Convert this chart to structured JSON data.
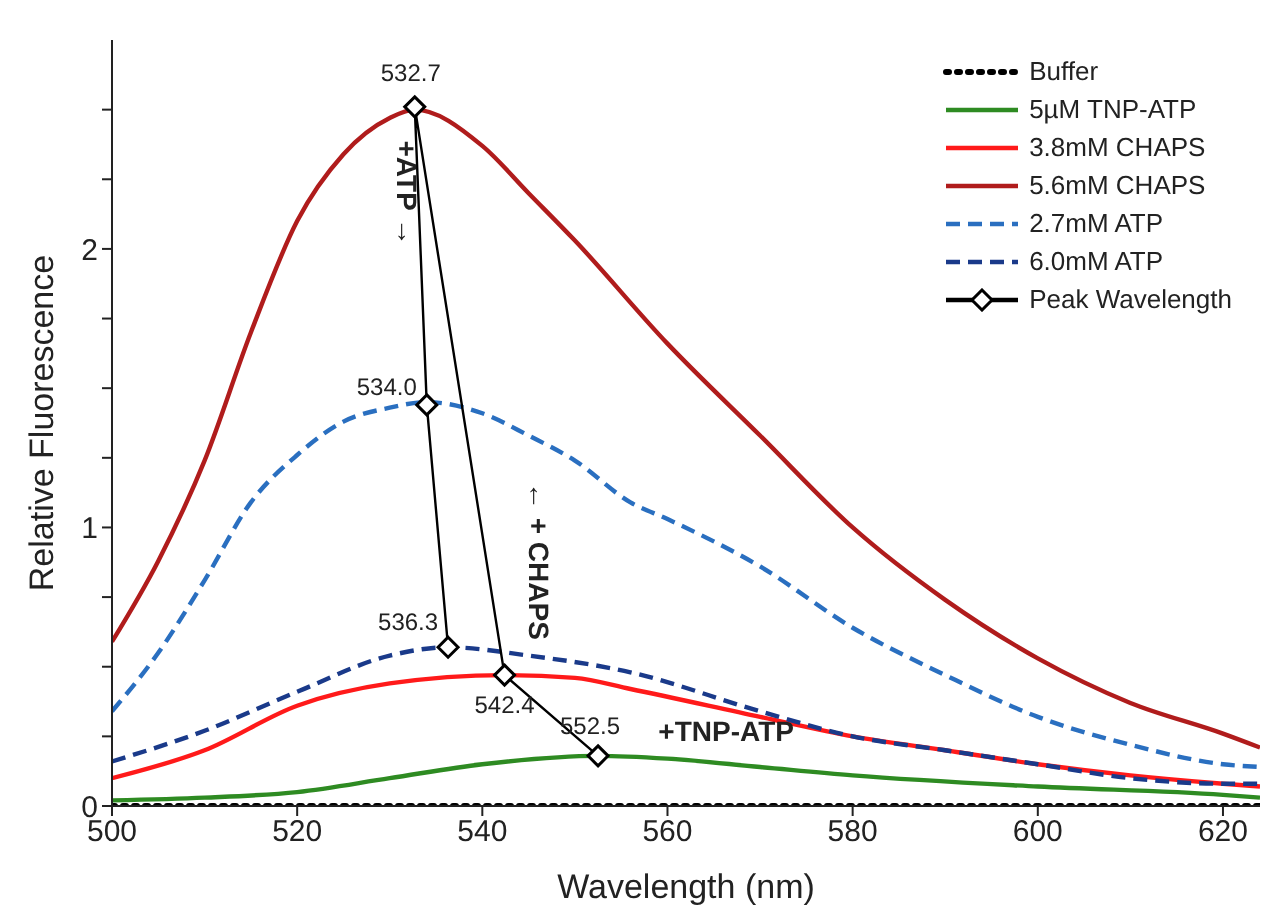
{
  "chart_data": {
    "type": "line",
    "xlabel": "Wavelength (nm)",
    "ylabel": "Relative Fluorescence",
    "xlim": [
      500,
      624
    ],
    "xticks": [
      500,
      520,
      540,
      560,
      580,
      600,
      620
    ],
    "ylim": [
      0,
      2.75
    ],
    "yticks": [
      0,
      {
        "value": 0.25,
        "label": null
      },
      {
        "value": 0.5,
        "label": null
      },
      {
        "value": 0.75,
        "label": null
      },
      1,
      {
        "value": 1.25,
        "label": null
      },
      {
        "value": 1.5,
        "label": null
      },
      {
        "value": 1.75,
        "label": null
      },
      2,
      {
        "value": 2.25,
        "label": null
      },
      {
        "value": 2.5,
        "label": null
      }
    ],
    "grid": false,
    "legend": "top right",
    "marker": "none",
    "series": [
      {
        "name": "Buffer",
        "color": "#000000",
        "line_style": "dotted",
        "x": [
          500,
          520,
          540,
          560,
          580,
          600,
          624
        ],
        "values": [
          0,
          0,
          0,
          0,
          0,
          0,
          0
        ]
      },
      {
        "name": "5µM TNP-ATP",
        "color": "#2e8b22",
        "line_style": "solid",
        "x": [
          500,
          510,
          520,
          530,
          540,
          552.5,
          560,
          570,
          580,
          600,
          620,
          624
        ],
        "values": [
          0.02,
          0.03,
          0.05,
          0.1,
          0.15,
          0.18,
          0.17,
          0.14,
          0.11,
          0.07,
          0.04,
          0.03
        ]
      },
      {
        "name": "3.8mM CHAPS",
        "color": "#ff1a1a",
        "line_style": "solid",
        "x": [
          500,
          510,
          520,
          530,
          542.4,
          550,
          556,
          570,
          580,
          590,
          600,
          610,
          620,
          624
        ],
        "values": [
          0.1,
          0.2,
          0.36,
          0.44,
          0.47,
          0.46,
          0.42,
          0.32,
          0.25,
          0.2,
          0.15,
          0.11,
          0.08,
          0.07
        ]
      },
      {
        "name": "5.6mM CHAPS",
        "color": "#b01c1c",
        "line_style": "solid",
        "x": [
          500,
          505,
          510,
          515,
          520,
          525,
          530,
          532.7,
          540,
          545,
          550,
          560,
          570,
          580,
          590,
          600,
          610,
          620,
          624
        ],
        "values": [
          0.59,
          0.88,
          1.24,
          1.7,
          2.1,
          2.34,
          2.47,
          2.5,
          2.37,
          2.2,
          2.03,
          1.66,
          1.33,
          1.0,
          0.74,
          0.53,
          0.37,
          0.26,
          0.21
        ]
      },
      {
        "name": "2.7mM ATP",
        "color": "#2a6fc0",
        "line_style": "dashed",
        "x": [
          500,
          505,
          510,
          515,
          520,
          525,
          530,
          534,
          540,
          545,
          550,
          556,
          560,
          570,
          580,
          590,
          600,
          610,
          620,
          624
        ],
        "values": [
          0.34,
          0.55,
          0.81,
          1.09,
          1.26,
          1.38,
          1.43,
          1.45,
          1.41,
          1.33,
          1.24,
          1.09,
          1.03,
          0.86,
          0.64,
          0.47,
          0.32,
          0.22,
          0.15,
          0.14
        ]
      },
      {
        "name": "6.0mM ATP",
        "color": "#1a3a8a",
        "line_style": "dashed",
        "x": [
          500,
          510,
          520,
          530,
          536.3,
          545,
          556,
          570,
          580,
          590,
          600,
          610,
          620,
          624
        ],
        "values": [
          0.16,
          0.27,
          0.41,
          0.54,
          0.57,
          0.54,
          0.48,
          0.34,
          0.25,
          0.2,
          0.15,
          0.1,
          0.08,
          0.08
        ]
      },
      {
        "name": "Peak Wavelength",
        "color": "#000000",
        "line_style": "solid",
        "marker": "diamond",
        "x": [
          536.3,
          534.0,
          532.7,
          542.4,
          552.5
        ],
        "values": [
          0.57,
          1.44,
          2.51,
          0.47,
          0.18
        ]
      }
    ],
    "annotations": [
      {
        "text": "532.7",
        "x": 532.7,
        "y": 2.51
      },
      {
        "text": "534.0",
        "x": 534.0,
        "y": 1.44
      },
      {
        "text": "536.3",
        "x": 536.3,
        "y": 0.57
      },
      {
        "text": "542.4",
        "x": 542.4,
        "y": 0.47
      },
      {
        "text": "552.5",
        "x": 552.5,
        "y": 0.18
      },
      "+ATP →",
      "← + CHAPS",
      "+TNP-ATP"
    ]
  }
}
